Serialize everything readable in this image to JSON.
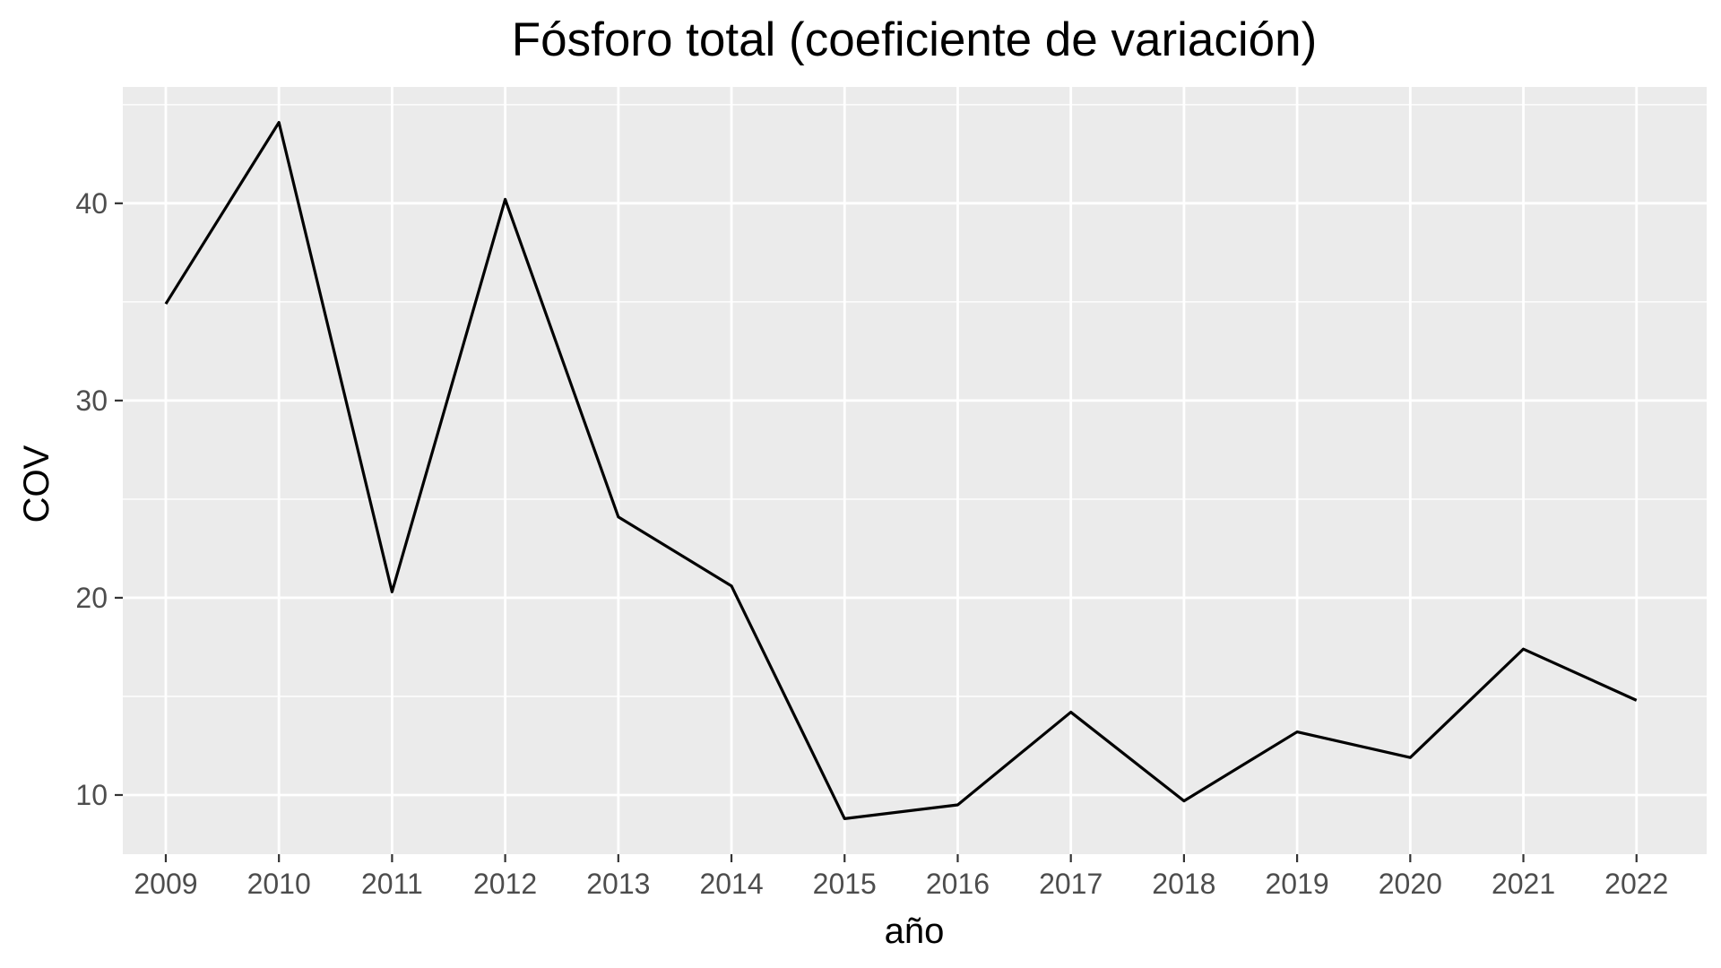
{
  "chart_data": {
    "type": "line",
    "title": "Fósforo total (coeficiente de variación)",
    "xlabel": "año",
    "ylabel": "COV",
    "x": [
      2009,
      2010,
      2011,
      2012,
      2013,
      2014,
      2015,
      2016,
      2017,
      2018,
      2019,
      2020,
      2021,
      2022
    ],
    "x_tick_labels": [
      "2009",
      "2010",
      "2011",
      "2012",
      "2013",
      "2014",
      "2015",
      "2016",
      "2017",
      "2018",
      "2019",
      "2020",
      "2021",
      "2022"
    ],
    "series": [
      {
        "values": [
          34.9,
          44.1,
          20.3,
          40.2,
          24.1,
          20.6,
          8.8,
          9.5,
          14.2,
          9.7,
          13.2,
          11.9,
          17.4,
          14.8
        ],
        "color": "#000000"
      }
    ],
    "xlim": [
      2008.62,
      2022.62
    ],
    "ylim": [
      7.0,
      45.9
    ],
    "y_ticks": [
      10,
      20,
      30,
      40
    ],
    "y_tick_labels": [
      "10",
      "20",
      "30",
      "40"
    ],
    "grid": true,
    "panel_background": "#ebebeb",
    "grid_color": "#ffffff",
    "legend": "none"
  }
}
